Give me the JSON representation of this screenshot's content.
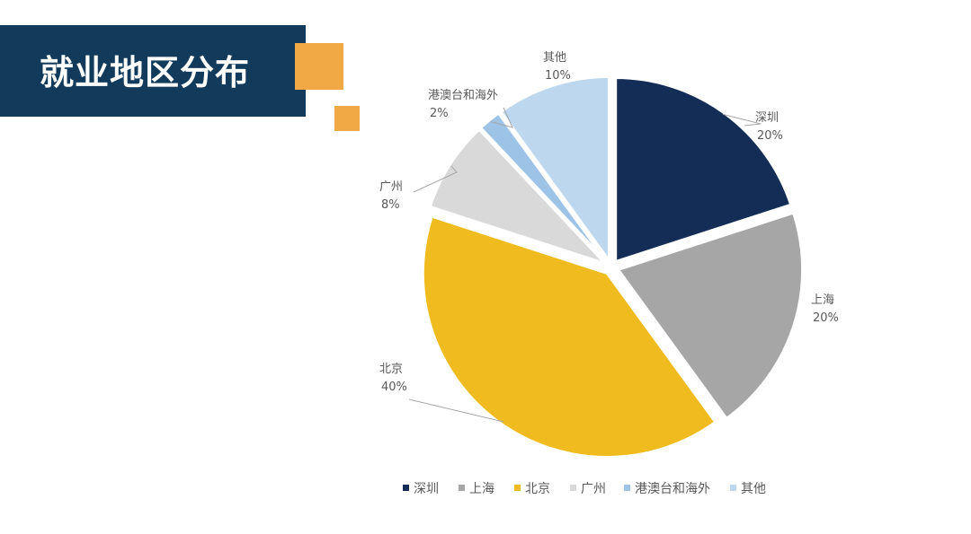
{
  "slide": {
    "title": "就业地区分布",
    "banner_color": "#123a5b",
    "accent_color": "#f0a944"
  },
  "chart_data": {
    "type": "pie",
    "title": "",
    "categories": [
      "深圳",
      "上海",
      "北京",
      "广州",
      "港澳台和海外",
      "其他"
    ],
    "values": [
      20,
      20,
      40,
      8,
      2,
      10
    ],
    "value_labels": [
      "20%",
      "20%",
      "40%",
      "8%",
      "2%",
      "10%"
    ],
    "colors": [
      "#142d57",
      "#a6a6a6",
      "#f0bb1e",
      "#d9d9d9",
      "#9dc3e6",
      "#bdd7ee"
    ],
    "exploded": true,
    "start_angle": "12 o'clock",
    "direction": "clockwise",
    "legend": {
      "position": "bottom",
      "entries": [
        "深圳",
        "上海",
        "北京",
        "广州",
        "港澳台和海外",
        "其他"
      ]
    }
  }
}
